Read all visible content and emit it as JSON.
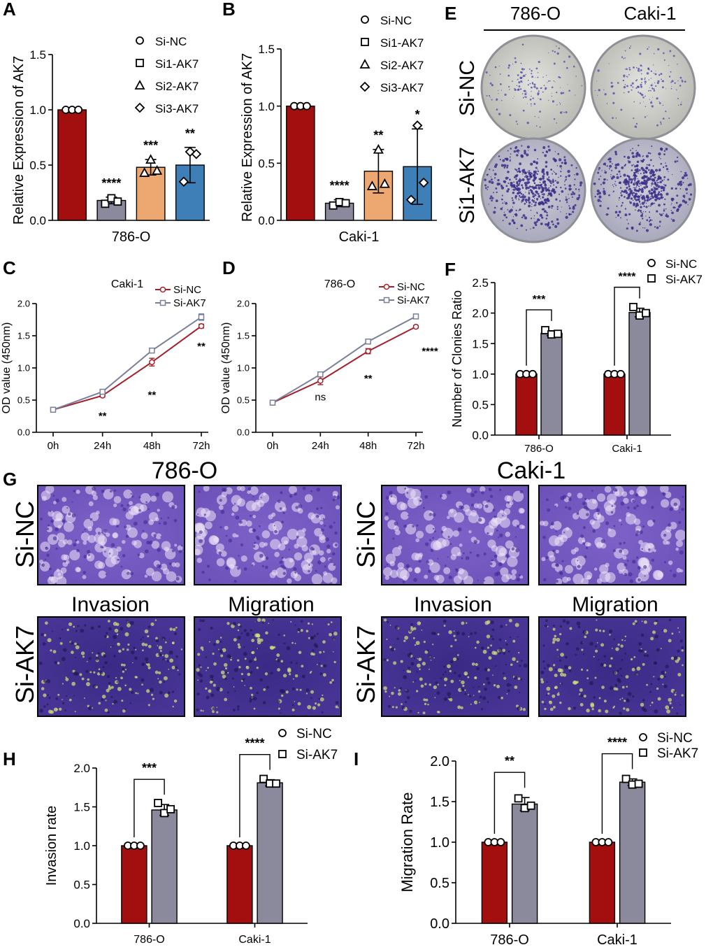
{
  "figure": {
    "panel_letters": [
      "A",
      "B",
      "C",
      "D",
      "E",
      "F",
      "G",
      "H",
      "I"
    ]
  },
  "colors": {
    "si_nc_bar": "#a30f0f",
    "si_ak7_bar": "#8a8a9c",
    "si2_bar": "#eda770",
    "si3_bar": "#3f7fb8",
    "line_nc": "#a3202a",
    "line_ak7": "#7a7f99",
    "stain_pale": "#ddc6ee",
    "stain_dark": "#3b2a78",
    "dish_gray": "#c9c9c4"
  },
  "chart_data": [
    {
      "id": "A",
      "type": "bar",
      "title": "",
      "xlabel": "786-O",
      "ylabel": "Relative Expression of  AK7",
      "ylim": [
        0,
        1.5
      ],
      "yticks": [
        "0.0",
        "0.5",
        "1.0",
        "1.5"
      ],
      "legend": [
        "Si-NC",
        "Si1-AK7",
        "Si2-AK7",
        "Si3-AK7"
      ],
      "legend_position": "top-right",
      "categories": [
        "Si-NC",
        "Si1-AK7",
        "Si2-AK7",
        "Si3-AK7"
      ],
      "values": [
        1.0,
        0.18,
        0.48,
        0.5
      ],
      "errors": [
        0.0,
        0.03,
        0.07,
        0.16
      ],
      "points": [
        [
          1.0,
          1.0,
          1.0
        ],
        [
          0.15,
          0.2,
          0.17
        ],
        [
          0.43,
          0.55,
          0.45
        ],
        [
          0.35,
          0.62,
          0.6
        ]
      ],
      "significance": [
        "",
        "****",
        "***",
        "**"
      ]
    },
    {
      "id": "B",
      "type": "bar",
      "title": "",
      "xlabel": "Caki-1",
      "ylabel": "Relative Expression of  AK7",
      "ylim": [
        0,
        1.5
      ],
      "yticks": [
        "0.0",
        "0.5",
        "1.0",
        "1.5"
      ],
      "legend": [
        "Si-NC",
        "Si1-AK7",
        "Si2-AK7",
        "Si3-AK7"
      ],
      "legend_position": "top-right",
      "categories": [
        "Si-NC",
        "Si1-AK7",
        "Si2-AK7",
        "Si3-AK7"
      ],
      "values": [
        1.0,
        0.15,
        0.43,
        0.47
      ],
      "errors": [
        0.0,
        0.03,
        0.19,
        0.33
      ],
      "points": [
        [
          1.0,
          1.0,
          1.0
        ],
        [
          0.13,
          0.16,
          0.15
        ],
        [
          0.3,
          0.62,
          0.32
        ],
        [
          0.18,
          0.83,
          0.33
        ]
      ],
      "significance": [
        "",
        "****",
        "**",
        "*"
      ]
    },
    {
      "id": "C",
      "type": "line",
      "title": "Caki-1",
      "xlabel": "",
      "ylabel": "OD value (450nm)",
      "ylim": [
        0,
        2.0
      ],
      "yticks": [
        "0.0",
        "0.5",
        "1.0",
        "1.5",
        "2.0"
      ],
      "x": [
        "0h",
        "24h",
        "48h",
        "72h"
      ],
      "series": [
        {
          "name": "Si-NC",
          "values": [
            0.35,
            0.57,
            1.09,
            1.65
          ],
          "errors": [
            0.02,
            0.02,
            0.06,
            0.03
          ]
        },
        {
          "name": "Si-AK7",
          "values": [
            0.35,
            0.63,
            1.27,
            1.79
          ],
          "errors": [
            0.02,
            0.02,
            0.03,
            0.05
          ]
        }
      ],
      "significance": [
        "",
        "**",
        "**",
        "**"
      ],
      "legend_position": "top-right"
    },
    {
      "id": "D",
      "type": "line",
      "title": "786-O",
      "xlabel": "",
      "ylabel": "OD value (450nm)",
      "ylim": [
        0,
        2.0
      ],
      "yticks": [
        "0.0",
        "0.5",
        "1.0",
        "1.5",
        "2.0"
      ],
      "x": [
        "0h",
        "24h",
        "48h",
        "72h"
      ],
      "series": [
        {
          "name": "Si-NC",
          "values": [
            0.46,
            0.8,
            1.26,
            1.64
          ],
          "errors": [
            0.02,
            0.06,
            0.04,
            0.02
          ]
        },
        {
          "name": "Si-AK7",
          "values": [
            0.46,
            0.9,
            1.41,
            1.8
          ],
          "errors": [
            0.02,
            0.02,
            0.02,
            0.02
          ]
        }
      ],
      "significance": [
        "",
        "ns",
        "**",
        "****"
      ],
      "legend_position": "top-right"
    },
    {
      "id": "F",
      "type": "bar",
      "title": "",
      "xlabel": "",
      "ylabel": "Number of Clonies Ratio",
      "ylim": [
        0,
        2.5
      ],
      "yticks": [
        "0.0",
        "0.5",
        "1.0",
        "1.5",
        "2.0",
        "2.5"
      ],
      "legend": [
        "Si-NC",
        "Si-AK7"
      ],
      "legend_position": "top-right",
      "categories": [
        "786-O",
        "Caki-1"
      ],
      "series": [
        {
          "name": "Si-NC",
          "values": [
            1.0,
            1.0
          ],
          "errors": [
            0.0,
            0.0
          ],
          "points": [
            [
              1.0,
              1.0,
              1.0
            ],
            [
              1.0,
              1.0,
              1.0
            ]
          ]
        },
        {
          "name": "Si-AK7",
          "values": [
            1.67,
            2.01
          ],
          "errors": [
            0.04,
            0.07
          ],
          "points": [
            [
              1.72,
              1.65,
              1.66
            ],
            [
              2.1,
              1.96,
              2.0
            ]
          ]
        }
      ],
      "significance": [
        "***",
        "****"
      ]
    },
    {
      "id": "H",
      "type": "bar",
      "title": "",
      "xlabel": "",
      "ylabel": "Invasion rate",
      "ylim": [
        0,
        2.0
      ],
      "yticks": [
        "0.0",
        "0.5",
        "1.0",
        "1.5",
        "2.0"
      ],
      "legend": [
        "Si-NC",
        "Si-AK7"
      ],
      "legend_position": "top-right",
      "categories": [
        "786-O",
        "Caki-1"
      ],
      "series": [
        {
          "name": "Si-NC",
          "values": [
            1.0,
            1.0
          ],
          "errors": [
            0.0,
            0.0
          ],
          "points": [
            [
              1.0,
              1.0,
              1.0
            ],
            [
              1.0,
              1.0,
              1.0
            ]
          ]
        },
        {
          "name": "Si-AK7",
          "values": [
            1.46,
            1.81
          ],
          "errors": [
            0.07,
            0.04
          ],
          "points": [
            [
              1.55,
              1.42,
              1.47
            ],
            [
              1.86,
              1.8,
              1.8
            ]
          ]
        }
      ],
      "significance": [
        "***",
        "****"
      ]
    },
    {
      "id": "I",
      "type": "bar",
      "title": "",
      "xlabel": "",
      "ylabel": "Migration Rate",
      "ylim": [
        0,
        2.0
      ],
      "yticks": [
        "0.0",
        "0.5",
        "1.0",
        "1.5",
        "2.0"
      ],
      "legend": [
        "Si-NC",
        "Si-AK7"
      ],
      "legend_position": "top-right",
      "categories": [
        "786-O",
        "Caki-1"
      ],
      "series": [
        {
          "name": "Si-NC",
          "values": [
            1.0,
            1.0
          ],
          "errors": [
            0.0,
            0.0
          ],
          "points": [
            [
              1.0,
              1.0,
              1.0
            ],
            [
              1.0,
              1.0,
              1.0
            ]
          ]
        },
        {
          "name": "Si-AK7",
          "values": [
            1.47,
            1.74
          ],
          "errors": [
            0.08,
            0.04
          ],
          "points": [
            [
              1.54,
              1.42,
              1.45
            ],
            [
              1.78,
              1.71,
              1.72
            ]
          ]
        }
      ],
      "significance": [
        "**",
        "****"
      ]
    }
  ],
  "panel_E": {
    "columns": [
      "786-O",
      "Caki-1"
    ],
    "rows": [
      "Si-NC",
      "Si1-AK7"
    ]
  },
  "panel_G": {
    "cell_lines": [
      "786-O",
      "Caki-1"
    ],
    "rows": [
      "Si-NC",
      "Si-AK7"
    ],
    "assays": [
      "Invasion",
      "Migration"
    ]
  }
}
